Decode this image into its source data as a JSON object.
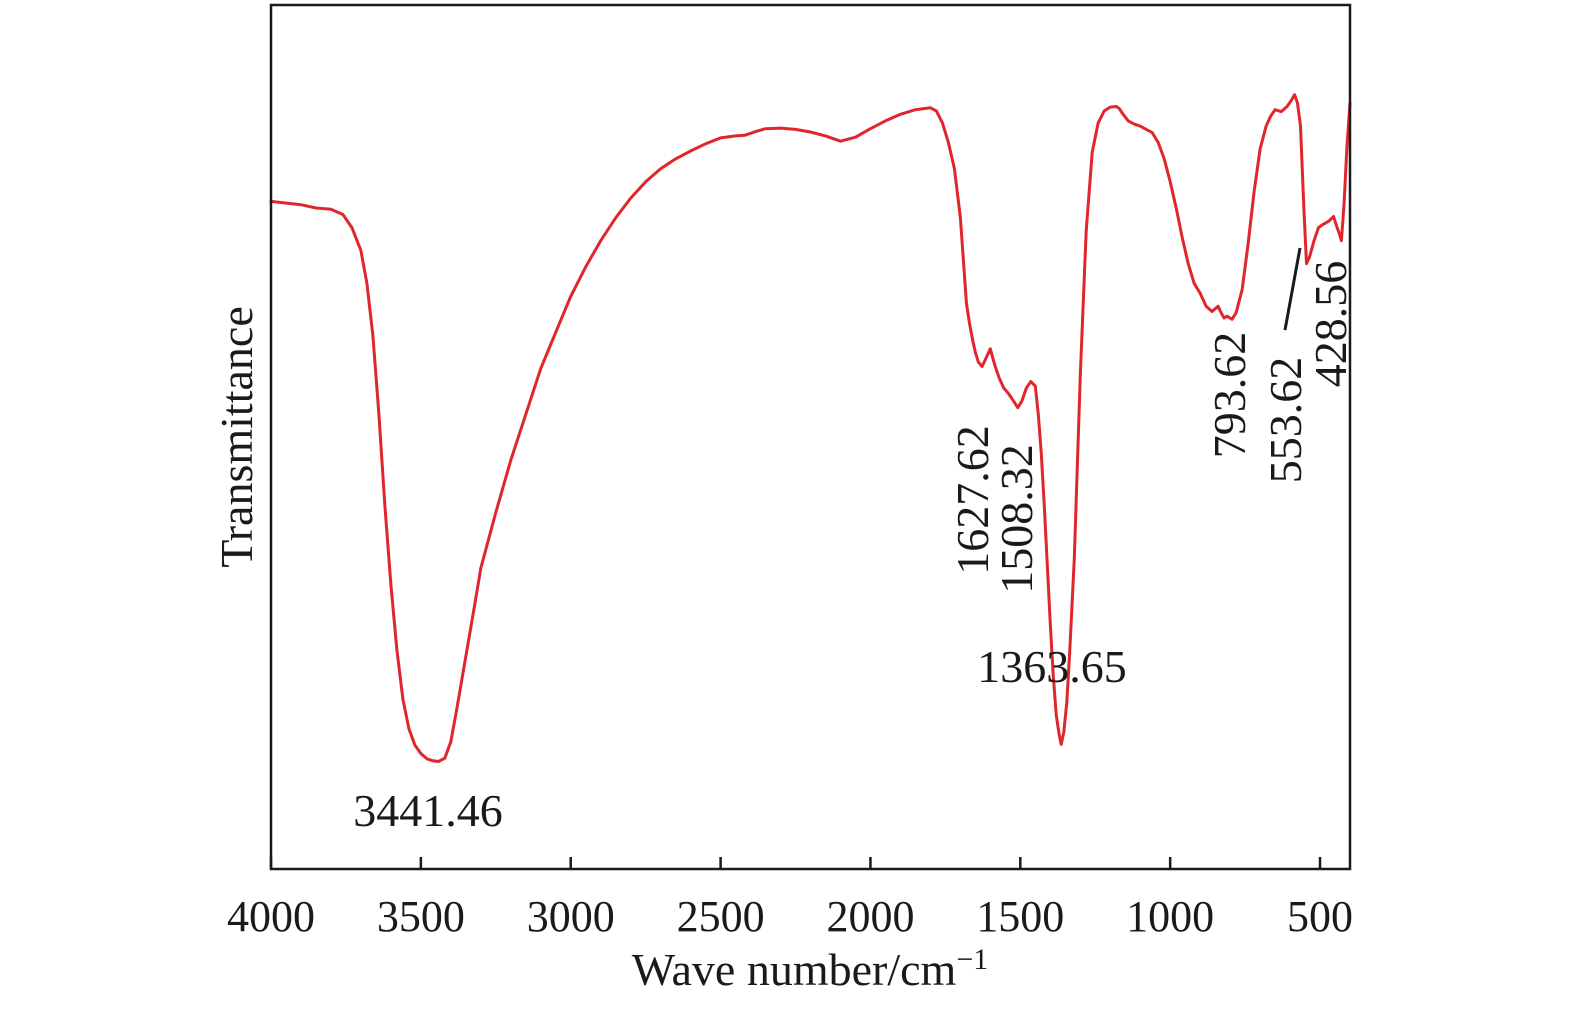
{
  "chart_data": {
    "type": "line",
    "xlabel": "Wave number/cm",
    "xlabel_sup": "−1",
    "ylabel": "Transmittance",
    "xlim": [
      4000,
      400
    ],
    "x_reversed": true,
    "ylim": [
      0,
      100
    ],
    "y_ticks_shown": false,
    "grid": false,
    "legend": "none",
    "x_ticks": [
      {
        "value": 4000,
        "label": "4000"
      },
      {
        "value": 3500,
        "label": "3500"
      },
      {
        "value": 3000,
        "label": "3000"
      },
      {
        "value": 2500,
        "label": "2500"
      },
      {
        "value": 2000,
        "label": "2000"
      },
      {
        "value": 1500,
        "label": "1500"
      },
      {
        "value": 1000,
        "label": "1000"
      },
      {
        "value": 500,
        "label": "500"
      }
    ],
    "series": [
      {
        "color": "#e0262b",
        "x": [
          4000,
          3900,
          3850,
          3800,
          3760,
          3730,
          3700,
          3680,
          3660,
          3640,
          3620,
          3600,
          3580,
          3560,
          3540,
          3520,
          3500,
          3480,
          3460,
          3441.46,
          3420,
          3400,
          3380,
          3350,
          3320,
          3300,
          3250,
          3200,
          3150,
          3100,
          3050,
          3000,
          2950,
          2900,
          2850,
          2800,
          2750,
          2700,
          2650,
          2600,
          2550,
          2500,
          2450,
          2420,
          2380,
          2350,
          2300,
          2250,
          2200,
          2150,
          2100,
          2050,
          2000,
          1950,
          1900,
          1850,
          1800,
          1780,
          1760,
          1740,
          1720,
          1700,
          1690,
          1680,
          1670,
          1660,
          1650,
          1640,
          1627.62,
          1615,
          1600,
          1585,
          1570,
          1555,
          1540,
          1525,
          1508.32,
          1495,
          1480,
          1465,
          1450,
          1440,
          1430,
          1420,
          1410,
          1400,
          1390,
          1380,
          1370,
          1363.65,
          1355,
          1345,
          1335,
          1320,
          1300,
          1280,
          1260,
          1240,
          1220,
          1200,
          1180,
          1170,
          1160,
          1140,
          1120,
          1100,
          1080,
          1060,
          1040,
          1020,
          1000,
          980,
          960,
          940,
          920,
          900,
          880,
          860,
          840,
          830,
          820,
          810,
          793.62,
          780,
          760,
          740,
          720,
          700,
          680,
          665,
          650,
          630,
          610,
          595,
          585,
          575,
          565,
          553.62,
          545,
          535,
          520,
          505,
          490,
          470,
          455,
          445,
          435,
          428.56,
          420,
          410,
          400
        ],
        "y": [
          86.5,
          86.0,
          85.5,
          85.3,
          84.5,
          82.5,
          79.0,
          74.0,
          66.0,
          54.0,
          40.0,
          28.0,
          18.0,
          10.5,
          6.0,
          3.5,
          2.2,
          1.4,
          1.1,
          1.0,
          1.5,
          4.0,
          9.0,
          17.0,
          25.0,
          30.5,
          39.0,
          47.0,
          54.0,
          61.0,
          66.5,
          72.0,
          76.5,
          80.5,
          84.0,
          87.0,
          89.5,
          91.5,
          93.0,
          94.2,
          95.3,
          96.2,
          96.5,
          96.6,
          97.2,
          97.6,
          97.7,
          97.5,
          97.1,
          96.5,
          95.7,
          96.3,
          97.6,
          98.8,
          99.8,
          100.5,
          100.8,
          100.3,
          98.5,
          95.5,
          91.5,
          84.0,
          77.5,
          71.0,
          68.0,
          65.5,
          63.5,
          62.0,
          61.3,
          62.5,
          64.0,
          61.5,
          59.5,
          58.0,
          57.2,
          56.2,
          55.0,
          56.0,
          58.0,
          59.0,
          58.3,
          54.0,
          48.0,
          40.0,
          31.0,
          22.0,
          14.0,
          8.0,
          5.0,
          3.6,
          5.5,
          10.0,
          18.0,
          32.0,
          60.0,
          82.0,
          94.0,
          98.5,
          100.3,
          100.9,
          101.0,
          100.7,
          100.0,
          98.8,
          98.3,
          98.0,
          97.5,
          97.0,
          95.5,
          93.0,
          89.5,
          85.5,
          81.0,
          77.0,
          74.0,
          72.5,
          70.5,
          69.7,
          70.5,
          69.5,
          68.7,
          69.0,
          68.5,
          69.5,
          73.0,
          80.0,
          88.0,
          94.5,
          98.0,
          99.5,
          100.5,
          100.2,
          101.0,
          102.0,
          102.8,
          101.5,
          98.0,
          85.0,
          77.0,
          78.0,
          80.5,
          82.5,
          83.0,
          83.5,
          84.2,
          82.8,
          81.5,
          80.5,
          86.0,
          95.0,
          101.5
        ]
      }
    ],
    "annotations": [
      {
        "text": "3441.46",
        "x": 3441.46,
        "orientation": "horizontal"
      },
      {
        "text": "1627.62",
        "x": 1627.62,
        "orientation": "vertical"
      },
      {
        "text": "1508.32",
        "x": 1508.32,
        "orientation": "vertical"
      },
      {
        "text": "1363.65",
        "x": 1363.65,
        "orientation": "horizontal"
      },
      {
        "text": "793.62",
        "x": 793.62,
        "orientation": "vertical"
      },
      {
        "text": "553.62",
        "x": 553.62,
        "orientation": "vertical"
      },
      {
        "text": "428.56",
        "x": 428.56,
        "orientation": "vertical"
      }
    ]
  }
}
